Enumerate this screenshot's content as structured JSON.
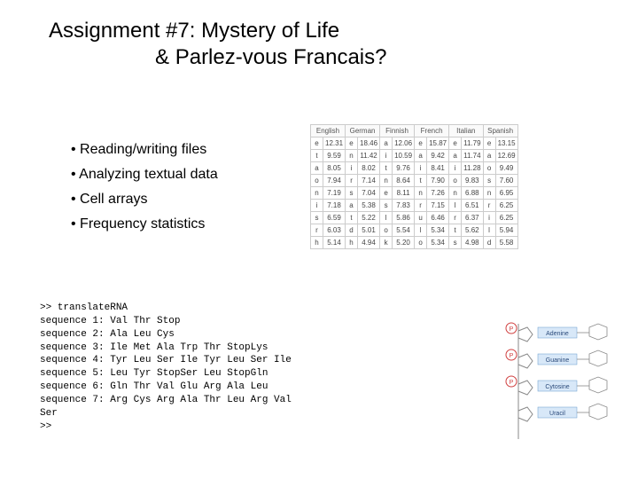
{
  "title_line1": "Assignment #7:  Mystery of Life",
  "title_line2": "& Parlez-vous Francais?",
  "bullets": [
    "Reading/writing files",
    "Analyzing textual data",
    "Cell arrays",
    "Frequency statistics"
  ],
  "freq_table": {
    "languages": [
      "English",
      "German",
      "Finnish",
      "French",
      "Italian",
      "Spanish"
    ],
    "rows": [
      [
        "e",
        "12.31",
        "e",
        "18.46",
        "a",
        "12.06",
        "e",
        "15.87",
        "e",
        "11.79",
        "e",
        "13.15"
      ],
      [
        "t",
        "9.59",
        "n",
        "11.42",
        "i",
        "10.59",
        "a",
        "9.42",
        "a",
        "11.74",
        "a",
        "12.69"
      ],
      [
        "a",
        "8.05",
        "i",
        "8.02",
        "t",
        "9.76",
        "i",
        "8.41",
        "i",
        "11.28",
        "o",
        "9.49"
      ],
      [
        "o",
        "7.94",
        "r",
        "7.14",
        "n",
        "8.64",
        "t",
        "7.90",
        "o",
        "9.83",
        "s",
        "7.60"
      ],
      [
        "n",
        "7.19",
        "s",
        "7.04",
        "e",
        "8.11",
        "n",
        "7.26",
        "n",
        "6.88",
        "n",
        "6.95"
      ],
      [
        "i",
        "7.18",
        "a",
        "5.38",
        "s",
        "7.83",
        "r",
        "7.15",
        "l",
        "6.51",
        "r",
        "6.25"
      ],
      [
        "s",
        "6.59",
        "t",
        "5.22",
        "l",
        "5.86",
        "u",
        "6.46",
        "r",
        "6.37",
        "i",
        "6.25"
      ],
      [
        "r",
        "6.03",
        "d",
        "5.01",
        "o",
        "5.54",
        "l",
        "5.34",
        "t",
        "5.62",
        "l",
        "5.94"
      ],
      [
        "h",
        "5.14",
        "h",
        "4.94",
        "k",
        "5.20",
        "o",
        "5.34",
        "s",
        "4.98",
        "d",
        "5.58"
      ]
    ],
    "header_fontsize": 8,
    "cell_fontsize": 8,
    "border_color": "#cccccc",
    "text_color": "#444444",
    "background_color": "#ffffff"
  },
  "code_lines": [
    ">> translateRNA",
    "sequence 1: Val Thr Stop",
    "sequence 2: Ala Leu Cys",
    "sequence 3: Ile Met Ala Trp Thr StopLys",
    "sequence 4: Tyr Leu Ser Ile Tyr Leu Ser Ile",
    "sequence 5: Leu Tyr StopSer Leu StopGln",
    "sequence 6: Gln Thr Val Glu Arg Ala Leu",
    "sequence 7: Arg Cys Arg Ala Thr Leu Arg Val",
    "Ser",
    ">>"
  ],
  "code_font": "Courier New",
  "code_fontsize": 11,
  "title_font": "Comic Sans MS",
  "title_fontsize": 24,
  "bullet_fontsize": 16,
  "rna_labels": {
    "p_badge": "P",
    "adenine": "Adenine",
    "guanine": "Guanine",
    "cytosine": "Cytosine",
    "uracil": "Uracil",
    "badge_color": "#d04040",
    "label_bg": "#d8e8f8",
    "label_border": "#6699cc",
    "bond_color": "#888888"
  },
  "colors": {
    "background": "#ffffff",
    "text": "#000000"
  }
}
